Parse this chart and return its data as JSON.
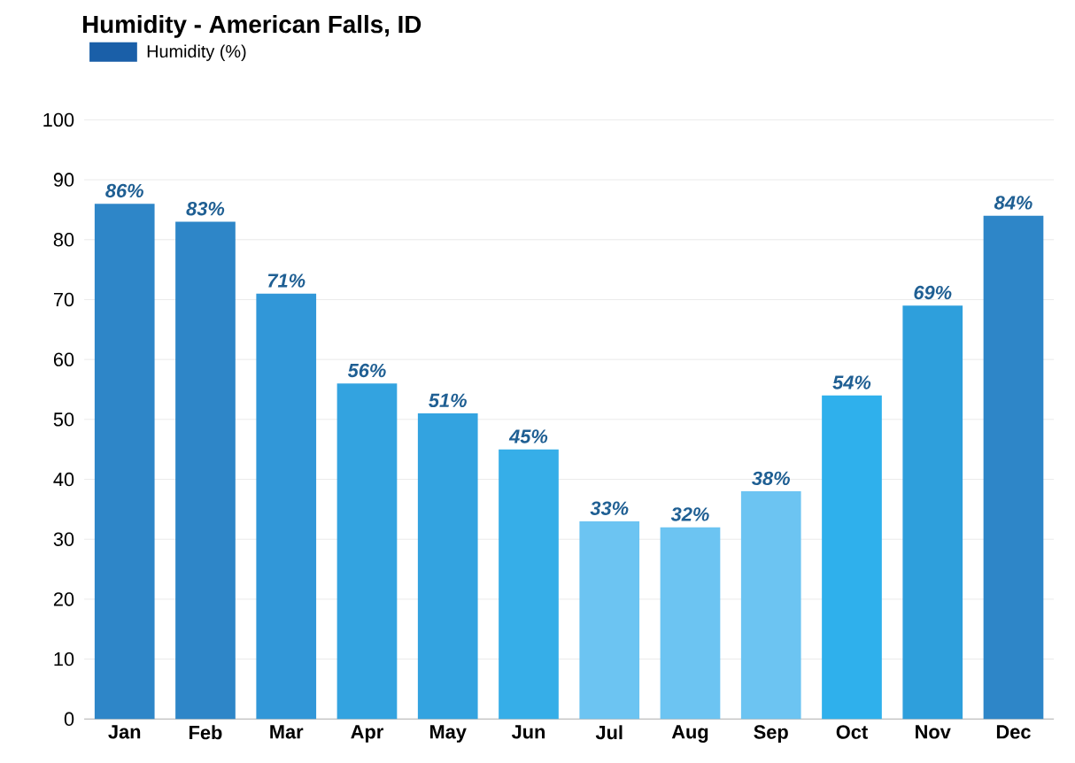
{
  "chart_data": {
    "type": "bar",
    "title": "Humidity - American Falls, ID",
    "categories": [
      "Jan",
      "Feb",
      "Mar",
      "Apr",
      "May",
      "Jun",
      "Jul",
      "Aug",
      "Sep",
      "Oct",
      "Nov",
      "Dec"
    ],
    "series": [
      {
        "name": "Humidity (%)",
        "color": "#1a5fa8",
        "values": [
          86,
          83,
          71,
          56,
          51,
          45,
          33,
          32,
          38,
          54,
          69,
          84
        ],
        "colors": [
          "#2e86c8",
          "#2e86c8",
          "#3197d8",
          "#33a3e0",
          "#33a3e0",
          "#36aee8",
          "#6cc4f2",
          "#6cc4f2",
          "#6cc4f2",
          "#2fb0ec",
          "#2e9fdc",
          "#2e86c8"
        ],
        "value_labels": [
          "86%",
          "83%",
          "71%",
          "56%",
          "51%",
          "45%",
          "33%",
          "32%",
          "38%",
          "54%",
          "69%",
          "84%"
        ]
      }
    ],
    "ylim": [
      0,
      100
    ],
    "yticks": [
      0,
      10,
      20,
      30,
      40,
      50,
      60,
      70,
      80,
      90,
      100
    ],
    "grid": "y",
    "legend": "top left"
  }
}
